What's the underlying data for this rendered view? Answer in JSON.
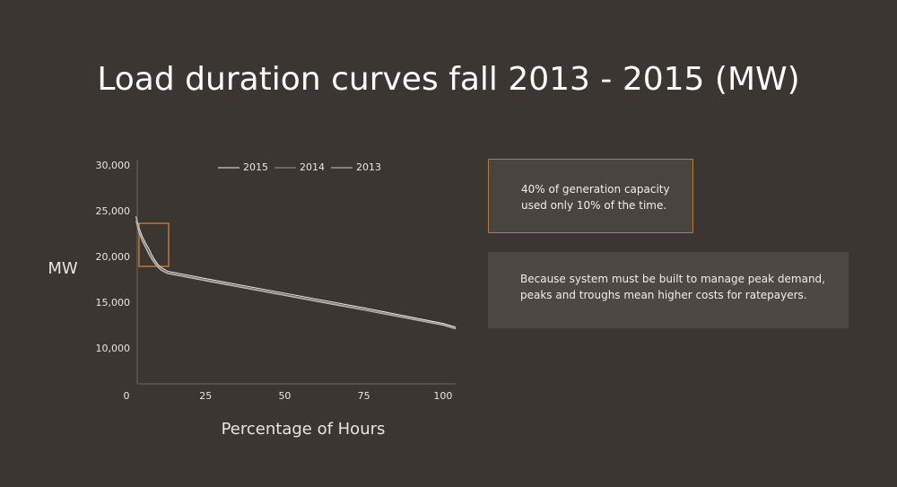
{
  "chart_data": {
    "type": "line",
    "title": "Load duration curves fall 2013 - 2015 (MW)",
    "y_label": "MW",
    "x_label": "Percentage of Hours",
    "x": [
      3,
      4,
      5,
      6,
      7,
      8,
      9,
      10,
      11,
      12,
      13,
      25,
      50,
      75,
      100,
      104
    ],
    "series": [
      {
        "name": "2015",
        "color": "#f2f0ec",
        "values": [
          24500,
          23200,
          22300,
          21600,
          21000,
          20300,
          19700,
          19200,
          18900,
          18700,
          18500,
          17700,
          16100,
          14500,
          12800,
          12400
        ]
      },
      {
        "name": "2014",
        "color": "#9a958f",
        "values": [
          24300,
          23000,
          22000,
          21300,
          20600,
          20000,
          19500,
          19000,
          18700,
          18500,
          18350,
          17550,
          15950,
          14350,
          12700,
          12300
        ]
      },
      {
        "name": "2013",
        "color": "#c9c5bf",
        "values": [
          24000,
          22700,
          21800,
          21100,
          20400,
          19800,
          19300,
          18900,
          18600,
          18400,
          18250,
          17450,
          15850,
          14250,
          12600,
          12200
        ]
      }
    ],
    "xlim": [
      0,
      104
    ],
    "xticks": [
      0,
      25,
      50,
      75,
      100
    ],
    "ylim": [
      6000,
      30500
    ],
    "yticks": [
      {
        "value": 10000,
        "label": "10,000"
      },
      {
        "value": 15000,
        "label": "15,000"
      },
      {
        "value": 20000,
        "label": "20,000"
      },
      {
        "value": 25000,
        "label": "25,000"
      },
      {
        "value": 30000,
        "label": "30,000"
      }
    ],
    "grid": false,
    "annotations": [
      "40% of generation capacity used only 10% of the time.",
      "Because system must be built to manage peak demand, peaks and troughs mean higher costs for ratepayers."
    ]
  }
}
